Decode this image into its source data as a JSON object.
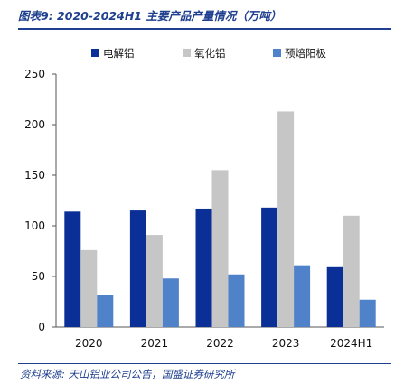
{
  "header": {
    "title": "图表9:  2020-2024H1 主要产品产量情况（万吨）"
  },
  "footer": {
    "source": "资料来源:  天山铝业公司公告，国盛证券研究所"
  },
  "chart_data": {
    "type": "bar",
    "categories": [
      "2020",
      "2021",
      "2022",
      "2023",
      "2024H1"
    ],
    "series": [
      {
        "name": "电解铝",
        "color": "#0a2f96",
        "values": [
          114,
          116,
          117,
          118,
          60
        ]
      },
      {
        "name": "氧化铝",
        "color": "#c6c6c6",
        "values": [
          76,
          91,
          155,
          213,
          110
        ]
      },
      {
        "name": "预焙阳极",
        "color": "#4f82c9",
        "values": [
          32,
          48,
          52,
          61,
          27
        ]
      }
    ],
    "ylim": [
      0,
      250
    ],
    "yticks": [
      0,
      50,
      100,
      150,
      200,
      250
    ],
    "legend": "top",
    "grid": false
  }
}
